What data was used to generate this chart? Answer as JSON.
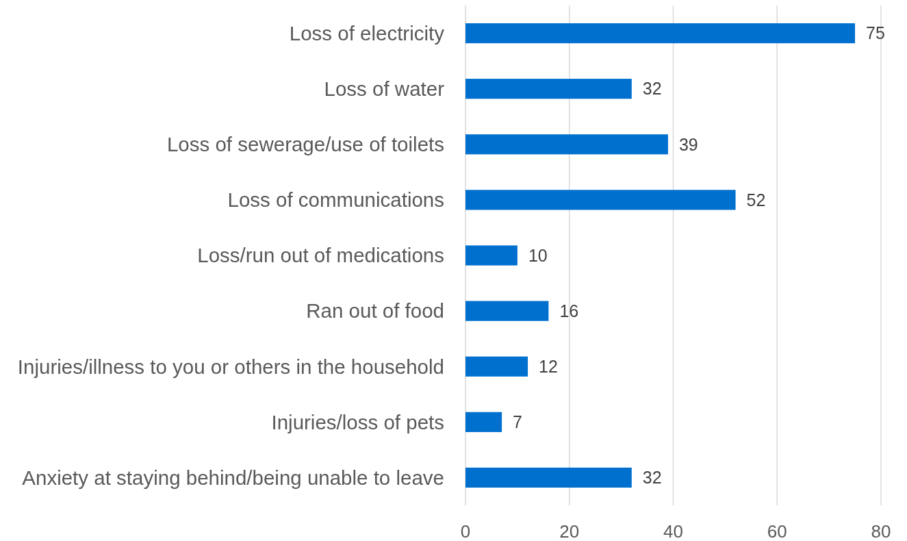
{
  "chart_data": {
    "type": "bar",
    "orientation": "horizontal",
    "categories": [
      "Loss of electricity",
      "Loss of water",
      "Loss of sewerage/use of toilets",
      "Loss of communications",
      "Loss/run out of medications",
      "Ran out of food",
      "Injuries/illness to you or others in the household",
      "Injuries/loss of pets",
      "Anxiety at staying behind/being unable to leave"
    ],
    "values": [
      75,
      32,
      39,
      52,
      10,
      16,
      12,
      7,
      32
    ],
    "color": "#0070cf",
    "xlim": [
      0,
      80
    ],
    "xticks": [
      0,
      20,
      40,
      60,
      80
    ],
    "grid": "x",
    "data_labels": true
  }
}
